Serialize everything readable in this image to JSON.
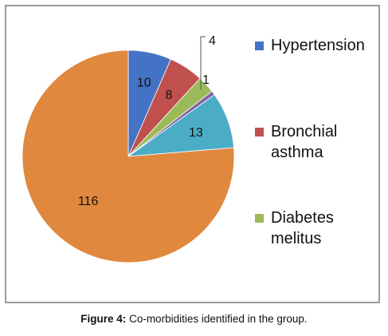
{
  "chart_data": {
    "type": "pie",
    "title": "",
    "slices": [
      {
        "label": "Hypertension",
        "value": 10,
        "color": "#4472C4"
      },
      {
        "label": "Bronchial asthma",
        "value": 8,
        "color": "#C0504D"
      },
      {
        "label": "Diabetes melitus",
        "value": 4,
        "color": "#9BBB59"
      },
      {
        "label": "",
        "value": 1,
        "color": "#8064A2"
      },
      {
        "label": "",
        "value": 13,
        "color": "#4BACC6"
      },
      {
        "label": "",
        "value": 116,
        "color": "#E0883E"
      }
    ],
    "data_labels": [
      "10",
      "8",
      "4",
      "1",
      "13",
      "116"
    ],
    "legend": {
      "placement": "right",
      "entries": [
        "Hypertension",
        "Bronchial asthma",
        "Diabetes melitus"
      ]
    }
  },
  "caption": {
    "figure_label": "Figure 4:",
    "text": " Co-morbidities identified in the group."
  }
}
